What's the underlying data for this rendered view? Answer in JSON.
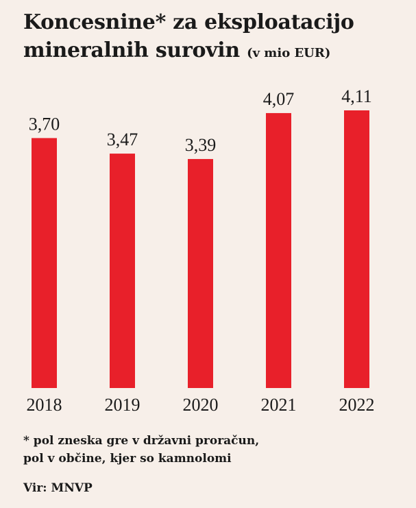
{
  "title": {
    "main": "Koncesnine* za eksploatacijo mineralnih surovin",
    "unit": "(v mio EUR)"
  },
  "chart_data": {
    "type": "bar",
    "categories": [
      "2018",
      "2019",
      "2020",
      "2021",
      "2022"
    ],
    "values": [
      3.7,
      3.47,
      3.39,
      4.07,
      4.11
    ],
    "value_labels": [
      "3,70",
      "3,47",
      "3,39",
      "4,07",
      "4,11"
    ],
    "ylim": [
      0,
      4.11
    ],
    "bar_color": "#e8202a",
    "grid": false,
    "legend": "none"
  },
  "footnote": {
    "line1": "* pol zneska gre v državni proračun,",
    "line2": "pol v občine, kjer so kamnolomi"
  },
  "source": "Vir: MNVP",
  "colors": {
    "background": "#f7efe9",
    "accent": "#e8202a",
    "text": "#1a1a1a"
  }
}
